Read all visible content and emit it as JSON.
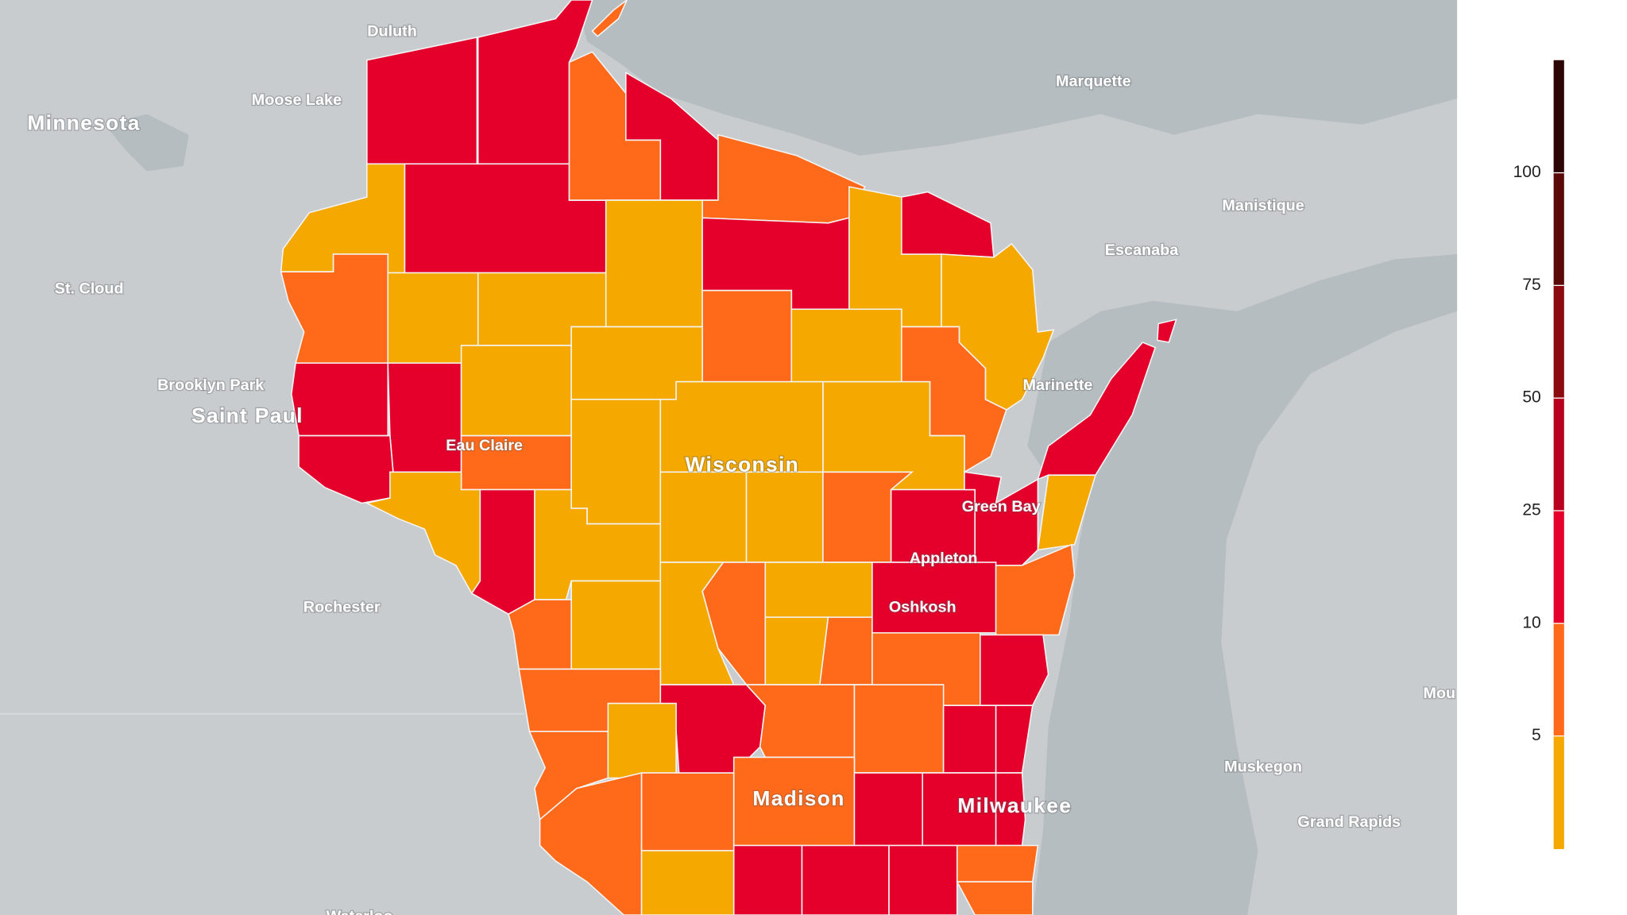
{
  "map": {
    "labels": [
      "Duluth",
      "Moose Lake",
      "Minnesota",
      "St. Cloud",
      "Brooklyn Park",
      "Saint Paul",
      "Eau Claire",
      "Wisconsin",
      "Green Bay",
      "Appleton",
      "Oshkosh",
      "Madison",
      "Milwaukee",
      "Rochester",
      "Marquette",
      "Manistique",
      "Escanaba",
      "Marinette",
      "Muskegon",
      "Grand Rapids",
      "Mou",
      "Waterloo"
    ],
    "legend": {
      "ticks": [
        5,
        10,
        25,
        50,
        75,
        100
      ],
      "colors": [
        "#f5a800",
        "#ff6a1a",
        "#e4002b",
        "#b8001f",
        "#8a0a10",
        "#5a0808",
        "#2e0505"
      ]
    }
  }
}
